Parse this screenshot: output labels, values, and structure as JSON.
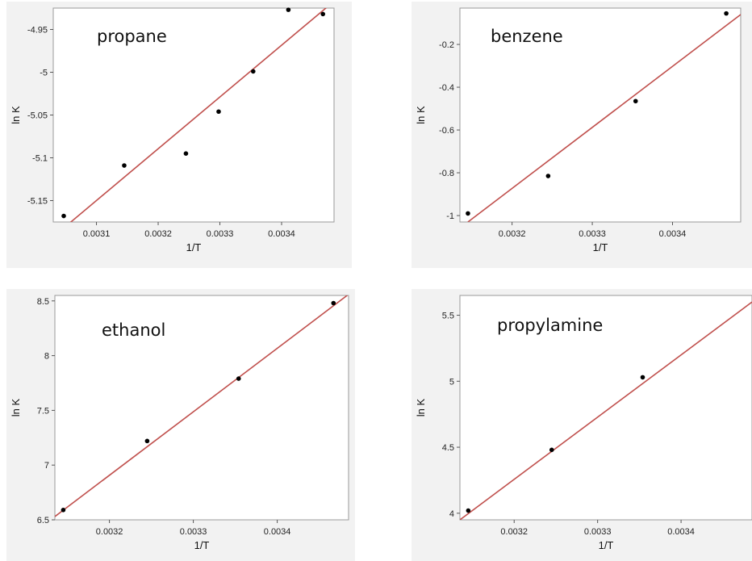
{
  "chart_data": [
    {
      "type": "scatter",
      "title": "propane",
      "xlabel": "1/T",
      "ylabel": "ln K",
      "xlim": [
        0.00303,
        0.003485
      ],
      "ylim": [
        -5.175,
        -4.925
      ],
      "xticks": [
        "0.0031",
        "0.0032",
        "0.0033",
        "0.0034"
      ],
      "xtick_values": [
        0.0031,
        0.0032,
        0.0033,
        0.0034
      ],
      "yticks": [
        "-4.95",
        "-5",
        "-5.05",
        "-5.1",
        "-5.15"
      ],
      "ytick_values": [
        -4.95,
        -5.0,
        -5.05,
        -5.1,
        -5.15
      ],
      "points": [
        [
          0.003047,
          -5.168
        ],
        [
          0.003145,
          -5.109
        ],
        [
          0.003245,
          -5.095
        ],
        [
          0.003298,
          -5.046
        ],
        [
          0.003354,
          -4.999
        ],
        [
          0.003411,
          -4.927
        ],
        [
          0.003467,
          -4.932
        ]
      ],
      "fit_line": [
        [
          0.003047,
          -5.182
        ],
        [
          0.003485,
          -4.917
        ]
      ]
    },
    {
      "type": "scatter",
      "title": "benzene",
      "xlabel": "1/T",
      "ylabel": "ln K",
      "xlim": [
        0.003135,
        0.003485
      ],
      "ylim": [
        -1.03,
        -0.03
      ],
      "xticks": [
        "0.0032",
        "0.0033",
        "0.0034"
      ],
      "xtick_values": [
        0.0032,
        0.0033,
        0.0034
      ],
      "yticks": [
        "-0.2",
        "-0.4",
        "-0.6",
        "-0.8",
        "-1"
      ],
      "ytick_values": [
        -0.2,
        -0.4,
        -0.6,
        -0.8,
        -1.0
      ],
      "points": [
        [
          0.003145,
          -0.99
        ],
        [
          0.003245,
          -0.815
        ],
        [
          0.003354,
          -0.465
        ],
        [
          0.003467,
          -0.055
        ]
      ],
      "fit_line": [
        [
          0.003145,
          -1.03
        ],
        [
          0.003485,
          -0.06
        ]
      ]
    },
    {
      "type": "scatter",
      "title": "ethanol",
      "xlabel": "1/T",
      "ylabel": "ln K",
      "xlim": [
        0.003135,
        0.003485
      ],
      "ylim": [
        6.5,
        8.55
      ],
      "xticks": [
        "0.0032",
        "0.0033",
        "0.0034"
      ],
      "xtick_values": [
        0.0032,
        0.0033,
        0.0034
      ],
      "yticks": [
        "6.5",
        "7",
        "7.5",
        "8",
        "8.5"
      ],
      "ytick_values": [
        6.5,
        7.0,
        7.5,
        8.0,
        8.5
      ],
      "points": [
        [
          0.003145,
          6.59
        ],
        [
          0.003245,
          7.22
        ],
        [
          0.003354,
          7.79
        ],
        [
          0.003467,
          8.48
        ]
      ],
      "fit_line": [
        [
          0.003135,
          6.53
        ],
        [
          0.003485,
          8.56
        ]
      ]
    },
    {
      "type": "scatter",
      "title": "propylamine",
      "xlabel": "1/T",
      "ylabel": "ln K",
      "xlim": [
        0.003135,
        0.003485
      ],
      "ylim": [
        3.95,
        5.65
      ],
      "xticks": [
        "0.0032",
        "0.0033",
        "0.0034"
      ],
      "xtick_values": [
        0.0032,
        0.0033,
        0.0034
      ],
      "yticks": [
        "5.5",
        "5",
        "4.5",
        "4"
      ],
      "ytick_values": [
        5.5,
        5.0,
        4.5,
        4.0
      ],
      "points": [
        [
          0.003145,
          4.02
        ],
        [
          0.003245,
          4.48
        ],
        [
          0.003354,
          5.03
        ]
      ],
      "fit_line": [
        [
          0.003135,
          3.95
        ],
        [
          0.003485,
          5.6
        ]
      ]
    }
  ]
}
